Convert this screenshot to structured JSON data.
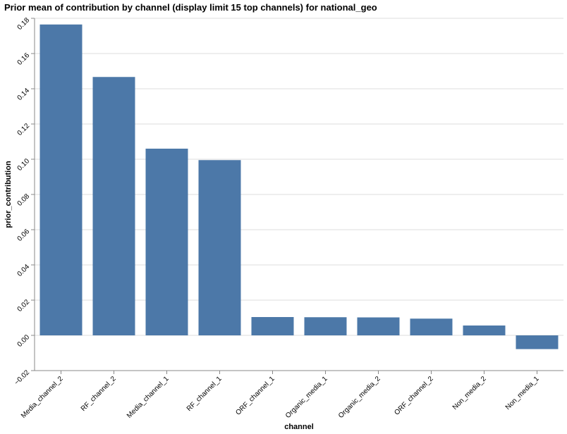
{
  "chart_data": {
    "type": "bar",
    "title": "Prior mean of contribution by channel (display limit 15 top channels) for national_geo",
    "xlabel": "channel",
    "ylabel": "prior_contribution",
    "ylim": [
      -0.02,
      0.18
    ],
    "yticks": [
      -0.02,
      0.0,
      0.02,
      0.04,
      0.06,
      0.08,
      0.1,
      0.12,
      0.14,
      0.16,
      0.18
    ],
    "ytick_labels": [
      "−0.02",
      "0.00",
      "0.02",
      "0.04",
      "0.06",
      "0.08",
      "0.10",
      "0.12",
      "0.14",
      "0.16",
      "0.18"
    ],
    "grid": true,
    "bar_color": "#4c78a8",
    "categories": [
      "Media_channel_2",
      "RF_channel_2",
      "Media_channel_1",
      "RF_channel_1",
      "ORF_channel_1",
      "Organic_media_1",
      "Organic_media_2",
      "ORF_channel_2",
      "Non_media_2",
      "Non_media_1"
    ],
    "values": [
      0.1765,
      0.1467,
      0.106,
      0.0995,
      0.0104,
      0.0103,
      0.0102,
      0.0095,
      0.0056,
      -0.0078
    ]
  }
}
